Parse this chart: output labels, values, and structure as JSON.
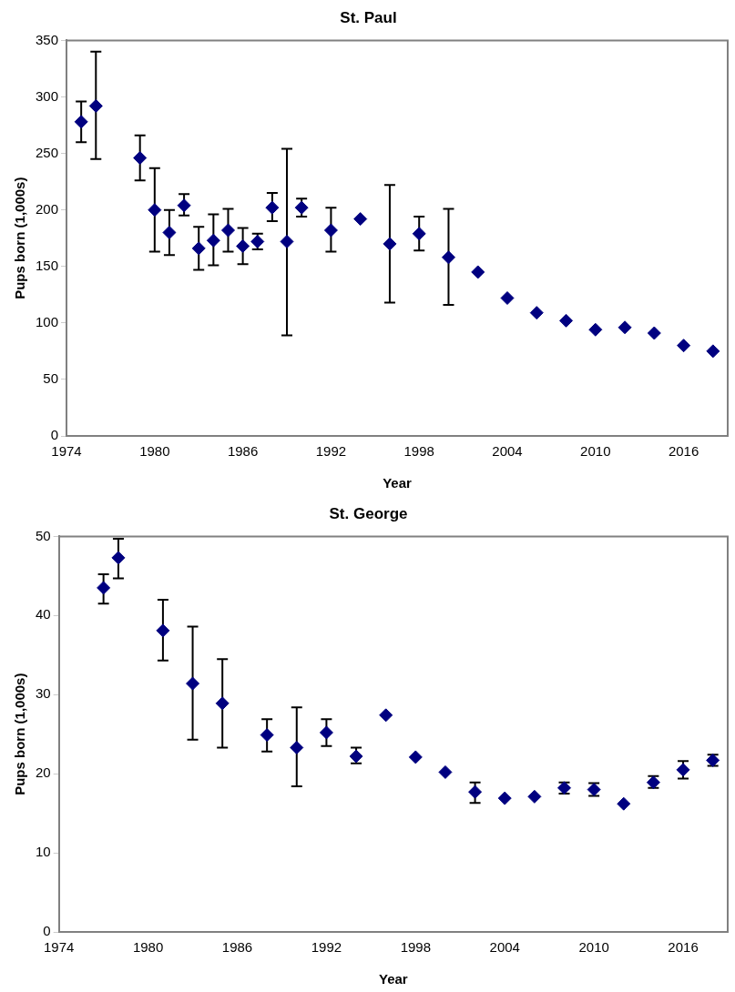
{
  "chart_data": [
    {
      "type": "scatter",
      "title": "St. Paul",
      "xlabel": "Year",
      "ylabel": "Pups born (1,000s)",
      "marker": "diamond",
      "grid": false,
      "legend": false,
      "xlim": [
        1974,
        2019
      ],
      "xticks": [
        1974,
        1980,
        1986,
        1992,
        1998,
        2004,
        2010,
        2016
      ],
      "ylim": [
        0,
        350
      ],
      "yticks": [
        0,
        50,
        100,
        150,
        200,
        250,
        300,
        350
      ],
      "series": [
        {
          "color": "#000080",
          "x": [
            1975,
            1976,
            1979,
            1980,
            1981,
            1982,
            1983,
            1984,
            1985,
            1986,
            1987,
            1988,
            1989,
            1990,
            1992,
            1994,
            1996,
            1998,
            2000,
            2002,
            2004,
            2006,
            2008,
            2010,
            2012,
            2014,
            2016,
            2018
          ],
          "values": [
            278,
            292,
            246,
            200,
            180,
            204,
            166,
            173,
            182,
            168,
            172,
            202,
            172,
            202,
            182,
            192,
            170,
            179,
            158,
            145,
            122,
            109,
            102,
            94,
            96,
            91,
            80,
            75
          ],
          "errors": [
            [
              260,
              296
            ],
            [
              245,
              340
            ],
            [
              226,
              266
            ],
            [
              163,
              237
            ],
            [
              160,
              200
            ],
            [
              195,
              214
            ],
            [
              147,
              185
            ],
            [
              151,
              196
            ],
            [
              163,
              201
            ],
            [
              152,
              184
            ],
            [
              165,
              179
            ],
            [
              190,
              215
            ],
            [
              89,
              254
            ],
            [
              194,
              210
            ],
            [
              163,
              202
            ],
            null,
            [
              118,
              222
            ],
            [
              164,
              194
            ],
            [
              116,
              201
            ],
            null,
            null,
            null,
            null,
            null,
            null,
            null,
            null,
            null
          ]
        }
      ]
    },
    {
      "type": "scatter",
      "title": "St. George",
      "xlabel": "Year",
      "ylabel": "Pups born (1,000s)",
      "marker": "diamond",
      "grid": false,
      "legend": false,
      "xlim": [
        1974,
        2019
      ],
      "xticks": [
        1974,
        1980,
        1986,
        1992,
        1998,
        2004,
        2010,
        2016
      ],
      "ylim": [
        0,
        50
      ],
      "yticks": [
        0,
        10,
        20,
        30,
        40,
        50
      ],
      "series": [
        {
          "color": "#000080",
          "x": [
            1977,
            1978,
            1981,
            1983,
            1985,
            1988,
            1990,
            1992,
            1994,
            1996,
            1998,
            2000,
            2002,
            2004,
            2006,
            2008,
            2010,
            2012,
            2014,
            2016,
            2018
          ],
          "values": [
            43.5,
            47.3,
            38.1,
            31.4,
            28.9,
            24.9,
            23.3,
            25.2,
            22.2,
            27.4,
            22.1,
            20.2,
            17.7,
            16.9,
            17.1,
            18.2,
            18.0,
            16.2,
            18.9,
            20.5,
            21.7
          ],
          "errors": [
            [
              41.5,
              45.2
            ],
            [
              44.7,
              49.7
            ],
            [
              34.3,
              42
            ],
            [
              24.3,
              38.6
            ],
            [
              23.3,
              34.5
            ],
            [
              22.8,
              26.9
            ],
            [
              18.4,
              28.4
            ],
            [
              23.5,
              26.9
            ],
            [
              21.3,
              23.3
            ],
            null,
            null,
            null,
            [
              16.3,
              18.9
            ],
            null,
            null,
            [
              17.5,
              18.9
            ],
            [
              17.2,
              18.8
            ],
            null,
            [
              18.2,
              19.7
            ],
            [
              19.4,
              21.6
            ],
            [
              21,
              22.4
            ]
          ]
        }
      ]
    }
  ]
}
